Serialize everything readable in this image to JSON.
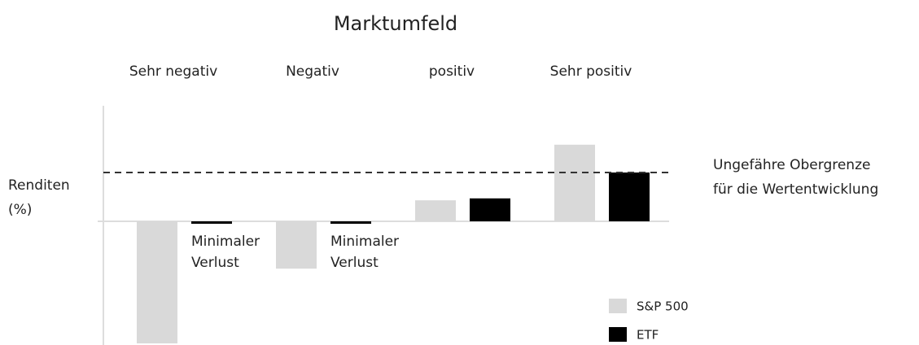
{
  "chart_data": {
    "type": "bar",
    "title": "Marktumfeld",
    "ylabel": [
      "Renditen",
      "(%)"
    ],
    "categories": [
      "Sehr negativ",
      "Negativ",
      "positiv",
      "Sehr positiv"
    ],
    "series": [
      {
        "name": "S&P 500",
        "color": "#d9d9d9",
        "values": [
          -25,
          -9.7,
          4.3,
          15.7
        ]
      },
      {
        "name": "ETF",
        "color": "#000000",
        "values": [
          -0.5,
          -0.5,
          4.7,
          10
        ]
      }
    ],
    "ylim": [
      -25,
      24
    ],
    "cap": {
      "value": 10,
      "label": [
        "Ungefähre Obergrenze",
        "für die Wertentwicklung"
      ]
    },
    "annotations": [
      {
        "category": 0,
        "text": [
          "Minimaler",
          "Verlust"
        ]
      },
      {
        "category": 1,
        "text": [
          "Minimaler",
          "Verlust"
        ]
      }
    ]
  }
}
